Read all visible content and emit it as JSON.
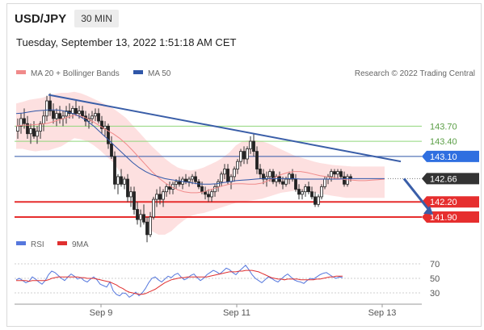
{
  "header": {
    "symbol": "USD/JPY",
    "timeframe": "30 MIN",
    "datetime": "Tuesday, September 13, 2022 1:51:18 AM CET"
  },
  "legend": {
    "ma20_label": "MA 20 + Bollinger Bands",
    "ma50_label": "MA 50",
    "credit": "Research © 2022 Trading Central",
    "rsi_label": "RSI",
    "ma9_label": "9MA"
  },
  "colors": {
    "ma20": "#f08a8a",
    "ma50": "#2f56a8",
    "resistance": "#8fd67a",
    "support": "#e62e2e",
    "trendline": "#3a5ea8",
    "band_fill": "#fde0e0",
    "rsi": "#5577dd",
    "ma9": "#e03030"
  },
  "chart_data": [
    {
      "type": "candlestick",
      "title": "USD/JPY",
      "ylim": [
        141.5,
        144.6
      ],
      "x_ticks": [
        "Sep 9",
        "Sep 11",
        "Sep 13"
      ],
      "levels": [
        {
          "value": "143.70",
          "kind": "resistance",
          "label_style": "text"
        },
        {
          "value": "143.40",
          "kind": "resistance",
          "label_style": "text"
        },
        {
          "value": "143.10",
          "kind": "pivot",
          "label_style": "tag"
        },
        {
          "value": "142.66",
          "kind": "last-price",
          "label_style": "tag"
        },
        {
          "value": "142.20",
          "kind": "support",
          "label_style": "tag"
        },
        {
          "value": "141.90",
          "kind": "support",
          "label_style": "tag"
        }
      ],
      "trendline": {
        "from": {
          "x": 10,
          "y": 144.32
        },
        "to": {
          "x": 119,
          "y": 143.0
        }
      },
      "projection_arrow": {
        "from": {
          "x": 120,
          "y": 142.66
        },
        "to": {
          "x": 129,
          "y": 141.95
        }
      },
      "candles": [
        [
          143.6,
          143.85,
          143.45,
          143.7
        ],
        [
          143.7,
          143.95,
          143.55,
          143.85
        ],
        [
          143.85,
          144.05,
          143.65,
          143.75
        ],
        [
          143.75,
          143.9,
          143.45,
          143.55
        ],
        [
          143.55,
          143.75,
          143.35,
          143.65
        ],
        [
          143.65,
          143.8,
          143.45,
          143.5
        ],
        [
          143.5,
          143.7,
          143.35,
          143.6
        ],
        [
          143.6,
          143.8,
          143.45,
          143.75
        ],
        [
          143.75,
          144.0,
          143.6,
          143.9
        ],
        [
          143.9,
          144.3,
          143.8,
          144.2
        ],
        [
          144.2,
          144.35,
          143.9,
          144.0
        ],
        [
          144.0,
          144.15,
          143.75,
          143.85
        ],
        [
          143.85,
          144.05,
          143.7,
          143.95
        ],
        [
          143.95,
          144.1,
          143.75,
          143.85
        ],
        [
          143.85,
          144.0,
          143.7,
          143.9
        ],
        [
          143.9,
          144.1,
          143.75,
          144.0
        ],
        [
          144.0,
          144.15,
          143.85,
          143.95
        ],
        [
          143.95,
          144.1,
          143.85,
          144.05
        ],
        [
          144.05,
          144.2,
          143.9,
          143.95
        ],
        [
          143.95,
          144.1,
          143.85,
          144.0
        ],
        [
          144.0,
          144.1,
          143.85,
          143.9
        ],
        [
          143.9,
          144.0,
          143.7,
          143.8
        ],
        [
          143.8,
          143.95,
          143.65,
          143.85
        ],
        [
          143.85,
          144.0,
          143.75,
          143.9
        ],
        [
          143.9,
          144.05,
          143.8,
          143.95
        ],
        [
          143.95,
          144.05,
          143.75,
          143.8
        ],
        [
          143.8,
          143.9,
          143.55,
          143.65
        ],
        [
          143.65,
          143.8,
          143.5,
          143.7
        ],
        [
          143.7,
          143.75,
          143.25,
          143.35
        ],
        [
          143.35,
          143.5,
          143.05,
          143.1
        ],
        [
          143.1,
          143.2,
          142.45,
          142.55
        ],
        [
          142.55,
          142.75,
          142.35,
          142.7
        ],
        [
          142.7,
          142.85,
          142.5,
          142.55
        ],
        [
          142.55,
          142.7,
          142.45,
          142.65
        ],
        [
          142.65,
          142.75,
          142.2,
          142.3
        ],
        [
          142.3,
          142.5,
          142.1,
          142.4
        ],
        [
          142.4,
          142.5,
          141.95,
          142.05
        ],
        [
          142.05,
          142.2,
          141.75,
          141.85
        ],
        [
          141.85,
          142.05,
          141.7,
          141.95
        ],
        [
          141.95,
          142.15,
          141.75,
          141.8
        ],
        [
          141.8,
          141.9,
          141.4,
          141.55
        ],
        [
          141.55,
          142.0,
          141.5,
          141.9
        ],
        [
          141.9,
          142.3,
          141.85,
          142.25
        ],
        [
          142.25,
          142.45,
          142.1,
          142.35
        ],
        [
          142.35,
          142.5,
          142.15,
          142.25
        ],
        [
          142.25,
          142.45,
          142.1,
          142.4
        ],
        [
          142.4,
          142.55,
          142.3,
          142.5
        ],
        [
          142.5,
          142.6,
          142.35,
          142.45
        ],
        [
          142.45,
          142.6,
          142.35,
          142.55
        ],
        [
          142.55,
          142.65,
          142.45,
          142.6
        ],
        [
          142.6,
          142.7,
          142.5,
          142.55
        ],
        [
          142.55,
          142.7,
          142.45,
          142.65
        ],
        [
          142.65,
          142.75,
          142.55,
          142.6
        ],
        [
          142.6,
          142.7,
          142.5,
          142.65
        ],
        [
          142.65,
          142.75,
          142.55,
          142.7
        ],
        [
          142.7,
          142.8,
          142.55,
          142.6
        ],
        [
          142.6,
          142.65,
          142.45,
          142.5
        ],
        [
          142.5,
          142.6,
          142.35,
          142.4
        ],
        [
          142.4,
          142.5,
          142.25,
          142.35
        ],
        [
          142.35,
          142.45,
          142.2,
          142.3
        ],
        [
          142.3,
          142.45,
          142.2,
          142.4
        ],
        [
          142.4,
          142.55,
          142.3,
          142.5
        ],
        [
          142.5,
          142.65,
          142.4,
          142.6
        ],
        [
          142.6,
          142.8,
          142.5,
          142.75
        ],
        [
          142.75,
          142.95,
          142.65,
          142.85
        ],
        [
          142.85,
          142.95,
          142.55,
          142.6
        ],
        [
          142.6,
          142.75,
          142.45,
          142.7
        ],
        [
          142.7,
          142.9,
          142.6,
          142.85
        ],
        [
          142.85,
          143.05,
          142.75,
          143.0
        ],
        [
          143.0,
          143.25,
          142.9,
          143.2
        ],
        [
          143.2,
          143.3,
          142.95,
          143.05
        ],
        [
          143.05,
          143.3,
          142.95,
          143.25
        ],
        [
          143.25,
          143.5,
          143.15,
          143.4
        ],
        [
          143.4,
          143.55,
          143.1,
          143.2
        ],
        [
          143.2,
          143.3,
          142.75,
          142.85
        ],
        [
          142.85,
          142.95,
          142.65,
          142.75
        ],
        [
          142.75,
          142.85,
          142.55,
          142.65
        ],
        [
          142.65,
          142.8,
          142.5,
          142.7
        ],
        [
          142.7,
          142.85,
          142.6,
          142.8
        ],
        [
          142.8,
          142.85,
          142.55,
          142.6
        ],
        [
          142.6,
          142.75,
          142.5,
          142.7
        ],
        [
          142.7,
          142.8,
          142.55,
          142.6
        ],
        [
          142.6,
          142.7,
          142.45,
          142.55
        ],
        [
          142.55,
          142.7,
          142.5,
          142.65
        ],
        [
          142.65,
          142.8,
          142.55,
          142.75
        ],
        [
          142.75,
          142.85,
          142.6,
          142.65
        ],
        [
          142.65,
          142.75,
          142.4,
          142.45
        ],
        [
          142.45,
          142.55,
          142.25,
          142.35
        ],
        [
          142.35,
          142.45,
          142.25,
          142.4
        ],
        [
          142.4,
          142.55,
          142.3,
          142.5
        ],
        [
          142.5,
          142.6,
          142.35,
          142.4
        ],
        [
          142.4,
          142.5,
          142.25,
          142.3
        ],
        [
          142.3,
          142.4,
          142.1,
          142.15
        ],
        [
          142.15,
          142.35,
          142.1,
          142.3
        ],
        [
          142.3,
          142.55,
          142.25,
          142.5
        ],
        [
          142.5,
          142.7,
          142.45,
          142.65
        ],
        [
          142.65,
          142.75,
          142.55,
          142.7
        ],
        [
          142.7,
          142.85,
          142.6,
          142.8
        ],
        [
          142.8,
          142.85,
          142.65,
          142.75
        ],
        [
          142.75,
          142.85,
          142.65,
          142.8
        ],
        [
          142.8,
          142.85,
          142.65,
          142.7
        ],
        [
          142.7,
          142.8,
          142.5,
          142.55
        ],
        [
          142.55,
          142.75,
          142.5,
          142.7
        ],
        [
          142.7,
          142.75,
          142.6,
          142.66
        ]
      ],
      "ma20": [
        143.7,
        143.72,
        143.72,
        143.73,
        143.74,
        143.76,
        143.8,
        143.84,
        143.88,
        143.92,
        143.9,
        143.85,
        143.78,
        143.7,
        143.62,
        143.55,
        143.46,
        143.35,
        143.22,
        143.08,
        142.94,
        142.8,
        142.68,
        142.58,
        142.5,
        142.44,
        142.4,
        142.38,
        142.38,
        142.4,
        142.44,
        142.48,
        142.52,
        142.55,
        142.56,
        142.56,
        142.55,
        142.55,
        142.57,
        142.62,
        142.68,
        142.74,
        142.78,
        142.8,
        142.8,
        142.78,
        142.75,
        142.72,
        142.7,
        142.68,
        142.66,
        142.64,
        142.63,
        142.62,
        142.62,
        142.63,
        142.64,
        142.65
      ],
      "ma20_x_step": 2,
      "band_upper": [
        144.15,
        144.18,
        144.22,
        144.24,
        144.26,
        144.3,
        144.34,
        144.36,
        144.36,
        144.38,
        144.35,
        144.3,
        144.24,
        144.18,
        144.12,
        144.05,
        143.96,
        143.86,
        143.72,
        143.58,
        143.44,
        143.3,
        143.18,
        143.06,
        142.96,
        142.88,
        142.84,
        142.82,
        142.84,
        142.88,
        142.94,
        143.0,
        143.08,
        143.18,
        143.32,
        143.4,
        143.42,
        143.42,
        143.4,
        143.36,
        143.3,
        143.24,
        143.18,
        143.12,
        143.08,
        143.04,
        143.0,
        142.97,
        142.95,
        142.93,
        142.92,
        142.91,
        142.9,
        142.9,
        142.9,
        142.9,
        142.9,
        142.9
      ],
      "band_lower": [
        143.25,
        143.25,
        143.22,
        143.2,
        143.22,
        143.22,
        143.26,
        143.3,
        143.38,
        143.46,
        143.44,
        143.4,
        143.32,
        143.22,
        143.1,
        142.98,
        142.8,
        142.56,
        142.28,
        142.0,
        141.78,
        141.62,
        141.55,
        141.55,
        141.62,
        141.74,
        141.84,
        141.92,
        141.96,
        141.98,
        142.02,
        142.06,
        142.1,
        142.14,
        142.18,
        142.2,
        142.22,
        142.24,
        142.26,
        142.3,
        142.34,
        142.38,
        142.4,
        142.42,
        142.42,
        142.4,
        142.38,
        142.36,
        142.34,
        142.32,
        142.3,
        142.28,
        142.28,
        142.28,
        142.28,
        142.28,
        142.28,
        142.28
      ],
      "ma50": [
        143.95,
        143.96,
        143.98,
        144.0,
        144.01,
        144.02,
        144.02,
        144.01,
        143.98,
        143.94,
        143.88,
        143.8,
        143.7,
        143.58,
        143.46,
        143.34,
        143.22,
        143.1,
        142.98,
        142.88,
        142.8,
        142.74,
        142.7,
        142.66,
        142.64,
        142.62,
        142.6,
        142.58,
        142.56,
        142.55,
        142.55,
        142.56,
        142.58,
        142.6,
        142.62,
        142.63,
        142.64,
        142.65,
        142.66,
        142.66,
        142.66,
        142.66,
        142.66,
        142.66,
        142.65,
        142.65,
        142.65,
        142.65,
        142.65,
        142.65,
        142.65,
        142.66,
        142.66,
        142.66,
        142.66,
        142.66,
        142.66,
        142.66
      ],
      "ma50_x_step": 2
    },
    {
      "type": "line",
      "title": "RSI",
      "ylim": [
        20,
        80
      ],
      "y_ticks": [
        "70",
        "50",
        "30"
      ],
      "series": [
        {
          "name": "RSI",
          "values": [
            48,
            50,
            47,
            44,
            46,
            52,
            49,
            45,
            42,
            47,
            55,
            60,
            58,
            54,
            50,
            47,
            52,
            56,
            53,
            49,
            51,
            47,
            45,
            49,
            52,
            48,
            42,
            40,
            38,
            45,
            33,
            28,
            26,
            30,
            29,
            24,
            27,
            31,
            26,
            30,
            36,
            44,
            50,
            52,
            48,
            45,
            49,
            53,
            51,
            55,
            57,
            52,
            48,
            50,
            54,
            56,
            51,
            47,
            50,
            55,
            58,
            61,
            59,
            56,
            60,
            64,
            62,
            58,
            55,
            60,
            64,
            68,
            62,
            55,
            50,
            47,
            44,
            48,
            52,
            50,
            47,
            45,
            49,
            53,
            56,
            52,
            48,
            46,
            45,
            43,
            47,
            50,
            49,
            52,
            55,
            57,
            58,
            55,
            52,
            50,
            52,
            51
          ]
        },
        {
          "name": "9MA",
          "values": [
            47,
            47,
            47,
            47,
            46,
            47,
            47,
            47,
            47,
            47,
            48,
            50,
            51,
            52,
            52,
            52,
            52,
            52,
            52,
            52,
            51,
            51,
            50,
            50,
            50,
            49,
            48,
            47,
            46,
            45,
            43,
            41,
            38,
            36,
            33,
            31,
            30,
            29,
            28,
            28,
            29,
            31,
            33,
            35,
            38,
            41,
            44,
            46,
            48,
            49,
            50,
            51,
            51,
            52,
            52,
            52,
            52,
            52,
            52,
            52,
            53,
            54,
            55,
            56,
            57,
            58,
            59,
            59,
            59,
            60,
            60,
            61,
            61,
            61,
            60,
            59,
            57,
            55,
            53,
            51,
            50,
            49,
            49,
            48,
            49,
            49,
            49,
            49,
            48,
            48,
            48,
            48,
            48,
            49,
            49,
            50,
            51,
            52,
            52,
            53,
            53,
            53
          ]
        }
      ]
    }
  ]
}
